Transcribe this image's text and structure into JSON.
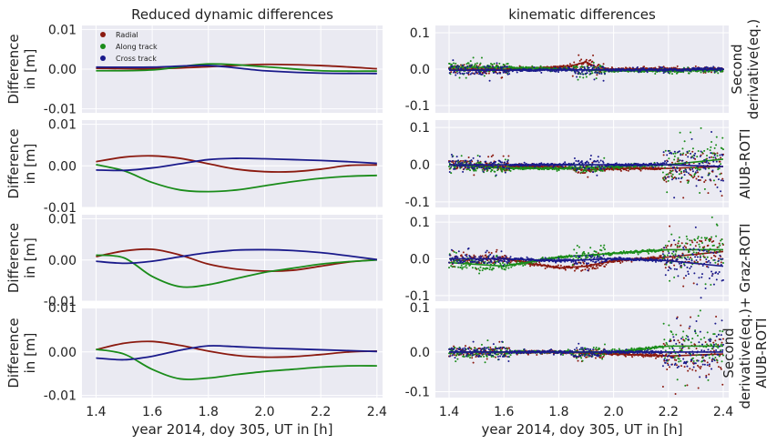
{
  "figure": {
    "col_titles": [
      "Reduced dynamic differences",
      "kinematic differences"
    ],
    "xlabel": "year 2014, doy 305, UT in [h]",
    "ylabel_line1": "Difference",
    "ylabel_line2": "in [m]",
    "row_labels": [
      [
        "Second",
        "derivative(eq.)"
      ],
      [
        "AIUB-ROTI"
      ],
      [
        "Graz-ROTI"
      ],
      [
        "Second",
        "derivative(eq.)+",
        "AIUB-ROTI"
      ]
    ],
    "legend": [
      "Radial",
      "Along track",
      "Cross track"
    ]
  },
  "colors": {
    "radial": "#8b1a10",
    "along": "#1a8c1a",
    "cross": "#1a1a8b",
    "panel_bg": "#eaeaf2",
    "grid": "#ffffff"
  },
  "chart_data": [
    {
      "type": "line",
      "panel": "reduced-row1",
      "xlim": [
        1.35,
        2.42
      ],
      "ylim": [
        -0.011,
        0.011
      ],
      "yticks": [
        -0.01,
        0.0,
        0.01
      ],
      "ytick_labels": [
        "-0.01",
        "0.00",
        "0.01"
      ],
      "xticks": [
        1.4,
        1.6,
        1.8,
        2.0,
        2.2,
        2.4
      ],
      "series": [
        {
          "name": "Radial",
          "x": [
            1.4,
            1.6,
            1.8,
            2.0,
            2.2,
            2.4
          ],
          "y": [
            0.0002,
            0.0001,
            0.0006,
            0.0012,
            0.0009,
            0.0001
          ]
        },
        {
          "name": "Along track",
          "x": [
            1.4,
            1.6,
            1.8,
            2.0,
            2.2,
            2.4
          ],
          "y": [
            -0.0004,
            -0.0002,
            0.0013,
            0.0006,
            -0.0004,
            -0.0005
          ]
        },
        {
          "name": "Cross track",
          "x": [
            1.4,
            1.6,
            1.8,
            2.0,
            2.2,
            2.4
          ],
          "y": [
            0.0005,
            0.0005,
            0.0009,
            -0.0004,
            -0.001,
            -0.0011
          ]
        }
      ]
    },
    {
      "type": "line",
      "panel": "reduced-row2",
      "xlim": [
        1.35,
        2.42
      ],
      "ylim": [
        -0.01,
        0.011
      ],
      "yticks": [
        -0.01,
        0.0,
        0.01
      ],
      "ytick_labels": [
        "-0.01",
        "0.00",
        "0.01"
      ],
      "xticks": [
        1.4,
        1.6,
        1.8,
        2.0,
        2.2,
        2.4
      ],
      "series": [
        {
          "name": "Radial",
          "x": [
            1.4,
            1.5,
            1.6,
            1.7,
            1.8,
            1.9,
            2.0,
            2.1,
            2.2,
            2.3,
            2.4
          ],
          "y": [
            0.001,
            0.0021,
            0.0024,
            0.0018,
            0.0005,
            -0.0008,
            -0.0014,
            -0.0014,
            -0.0008,
            0.0001,
            0.0002
          ]
        },
        {
          "name": "Along track",
          "x": [
            1.4,
            1.5,
            1.6,
            1.7,
            1.8,
            1.9,
            2.0,
            2.1,
            2.2,
            2.3,
            2.4
          ],
          "y": [
            0.0003,
            -0.0012,
            -0.004,
            -0.0058,
            -0.0062,
            -0.0058,
            -0.0048,
            -0.0038,
            -0.003,
            -0.0025,
            -0.0023
          ]
        },
        {
          "name": "Cross track",
          "x": [
            1.4,
            1.5,
            1.6,
            1.7,
            1.8,
            1.9,
            2.0,
            2.1,
            2.2,
            2.3,
            2.4
          ],
          "y": [
            -0.001,
            -0.0011,
            -0.0005,
            0.0005,
            0.0015,
            0.0018,
            0.0017,
            0.0015,
            0.0013,
            0.001,
            0.0006
          ]
        }
      ]
    },
    {
      "type": "line",
      "panel": "reduced-row3",
      "xlim": [
        1.35,
        2.42
      ],
      "ylim": [
        -0.01,
        0.011
      ],
      "yticks": [
        -0.01,
        0.0,
        0.01
      ],
      "ytick_labels": [
        "-0.01",
        "0.00",
        "0.01"
      ],
      "xticks": [
        1.4,
        1.6,
        1.8,
        2.0,
        2.2,
        2.4
      ],
      "series": [
        {
          "name": "Radial",
          "x": [
            1.4,
            1.5,
            1.6,
            1.7,
            1.8,
            1.9,
            2.0,
            2.1,
            2.2,
            2.3,
            2.4
          ],
          "y": [
            0.0008,
            0.0022,
            0.0026,
            0.0012,
            -0.001,
            -0.0022,
            -0.0027,
            -0.0025,
            -0.0015,
            -0.0005,
            0.0001
          ]
        },
        {
          "name": "Along track",
          "x": [
            1.4,
            1.5,
            1.6,
            1.7,
            1.8,
            1.9,
            2.0,
            2.1,
            2.2,
            2.3,
            2.4
          ],
          "y": [
            0.0012,
            0.0005,
            -0.004,
            -0.0065,
            -0.006,
            -0.0045,
            -0.003,
            -0.002,
            -0.001,
            -0.0004,
            0.0
          ]
        },
        {
          "name": "Cross track",
          "x": [
            1.4,
            1.5,
            1.6,
            1.7,
            1.8,
            1.9,
            2.0,
            2.1,
            2.2,
            2.3,
            2.4
          ],
          "y": [
            -0.0003,
            -0.0008,
            -0.0003,
            0.0008,
            0.0018,
            0.0024,
            0.0025,
            0.0023,
            0.0018,
            0.001,
            0.0001
          ]
        }
      ]
    },
    {
      "type": "line",
      "panel": "reduced-row4",
      "xlim": [
        1.35,
        2.42
      ],
      "ylim": [
        -0.0105,
        0.01
      ],
      "yticks": [
        -0.01,
        0.0
      ],
      "ytick_labels": [
        "-0.01",
        "0.00"
      ],
      "xticks": [
        1.4,
        1.6,
        1.8,
        2.0,
        2.2,
        2.4
      ],
      "xtick_labels": [
        "1.4",
        "1.6",
        "1.8",
        "2.0",
        "2.2",
        "2.4"
      ],
      "top_label": "0.01",
      "series": [
        {
          "name": "Radial",
          "x": [
            1.4,
            1.5,
            1.6,
            1.7,
            1.8,
            1.9,
            2.0,
            2.1,
            2.2,
            2.3,
            2.4
          ],
          "y": [
            0.0005,
            0.002,
            0.0024,
            0.0015,
            0.0002,
            -0.0008,
            -0.0012,
            -0.0011,
            -0.0006,
            0.0,
            0.0002
          ]
        },
        {
          "name": "Along track",
          "x": [
            1.4,
            1.5,
            1.6,
            1.7,
            1.8,
            1.9,
            2.0,
            2.1,
            2.2,
            2.3,
            2.4
          ],
          "y": [
            0.0006,
            -0.0005,
            -0.004,
            -0.0062,
            -0.006,
            -0.0052,
            -0.0045,
            -0.004,
            -0.0035,
            -0.0032,
            -0.0032
          ]
        },
        {
          "name": "Cross track",
          "x": [
            1.4,
            1.5,
            1.6,
            1.7,
            1.8,
            1.9,
            2.0,
            2.1,
            2.2,
            2.3,
            2.4
          ],
          "y": [
            -0.0014,
            -0.0018,
            -0.001,
            0.0004,
            0.0014,
            0.0012,
            0.0009,
            0.0007,
            0.0005,
            0.0003,
            0.0001
          ]
        }
      ]
    },
    {
      "type": "scatter",
      "panel": "kinematic-row1",
      "xlim": [
        1.35,
        2.42
      ],
      "ylim": [
        -0.12,
        0.12
      ],
      "yticks": [
        -0.1,
        0.0,
        0.1
      ],
      "ytick_labels": [
        "-0.1",
        "0.0",
        "0.1"
      ],
      "xticks": [
        1.4,
        1.6,
        1.8,
        2.0,
        2.2,
        2.4
      ],
      "series": [
        {
          "name": "Radial",
          "x": [
            1.4,
            1.6,
            1.8,
            1.85,
            1.9,
            1.95,
            2.0,
            2.2,
            2.4
          ],
          "y": [
            0.0,
            0.0,
            0.005,
            0.01,
            0.02,
            0.0,
            0.0,
            0.0,
            0.0
          ]
        },
        {
          "name": "Along track",
          "x": [
            1.4,
            1.6,
            1.8,
            2.0,
            2.2,
            2.4
          ],
          "y": [
            0.005,
            0.005,
            0.0,
            -0.005,
            -0.005,
            -0.003
          ]
        },
        {
          "name": "Cross track",
          "x": [
            1.4,
            1.6,
            1.8,
            2.0,
            2.2,
            2.4
          ],
          "y": [
            -0.003,
            -0.003,
            -0.002,
            -0.002,
            -0.002,
            0.0
          ]
        }
      ]
    },
    {
      "type": "scatter",
      "panel": "kinematic-row2",
      "xlim": [
        1.35,
        2.42
      ],
      "ylim": [
        -0.115,
        0.12
      ],
      "yticks": [
        -0.1,
        0.0,
        0.1
      ],
      "ytick_labels": [
        "-0.1",
        "0.0",
        "0.1"
      ],
      "xticks": [
        1.4,
        1.6,
        1.8,
        2.0,
        2.2,
        2.4
      ],
      "series": [
        {
          "name": "Radial",
          "x": [
            1.4,
            1.6,
            1.8,
            1.9,
            2.0,
            2.2,
            2.4
          ],
          "y": [
            0.0,
            -0.005,
            -0.005,
            -0.015,
            -0.01,
            -0.01,
            -0.005
          ]
        },
        {
          "name": "Along track",
          "x": [
            1.4,
            1.6,
            1.8,
            2.0,
            2.2,
            2.4
          ],
          "y": [
            0.0,
            -0.01,
            -0.01,
            -0.005,
            0.0,
            0.015
          ]
        },
        {
          "name": "Cross track",
          "x": [
            1.4,
            1.6,
            1.8,
            2.0,
            2.2,
            2.4
          ],
          "y": [
            0.0,
            0.0,
            0.0,
            0.0,
            0.0,
            -0.005
          ]
        }
      ]
    },
    {
      "type": "scatter",
      "panel": "kinematic-row3",
      "xlim": [
        1.35,
        2.42
      ],
      "ylim": [
        -0.115,
        0.12
      ],
      "yticks": [
        -0.1,
        0.0,
        0.1
      ],
      "ytick_labels": [
        "-0.1",
        "0.0",
        "0.1"
      ],
      "xticks": [
        1.4,
        1.6,
        1.8,
        2.0,
        2.2,
        2.4
      ],
      "series": [
        {
          "name": "Radial",
          "x": [
            1.4,
            1.6,
            1.8,
            1.9,
            2.0,
            2.2,
            2.4
          ],
          "y": [
            0.0,
            0.0,
            -0.025,
            -0.02,
            -0.005,
            0.005,
            0.02
          ]
        },
        {
          "name": "Along track",
          "x": [
            1.4,
            1.6,
            1.8,
            2.0,
            2.2,
            2.4
          ],
          "y": [
            -0.01,
            -0.02,
            0.005,
            0.015,
            0.025,
            0.025
          ]
        },
        {
          "name": "Cross track",
          "x": [
            1.4,
            1.6,
            1.8,
            2.0,
            2.2,
            2.4
          ],
          "y": [
            0.0,
            0.0,
            -0.005,
            0.0,
            -0.005,
            -0.02
          ]
        }
      ]
    },
    {
      "type": "scatter",
      "panel": "kinematic-row4",
      "xlim": [
        1.35,
        2.42
      ],
      "ylim": [
        -0.115,
        0.11
      ],
      "yticks": [
        -0.1,
        0.0
      ],
      "ytick_labels": [
        "-0.1",
        "0.0"
      ],
      "xticks": [
        1.4,
        1.6,
        1.8,
        2.0,
        2.2,
        2.4
      ],
      "xtick_labels": [
        "1.4",
        "1.6",
        "1.8",
        "2.0",
        "2.2",
        "2.4"
      ],
      "top_label": "0.1",
      "series": [
        {
          "name": "Radial",
          "x": [
            1.4,
            1.6,
            1.8,
            2.0,
            2.2,
            2.4
          ],
          "y": [
            0.0,
            0.0,
            0.0,
            -0.005,
            -0.01,
            -0.005
          ]
        },
        {
          "name": "Along track",
          "x": [
            1.4,
            1.6,
            1.8,
            2.0,
            2.2,
            2.4
          ],
          "y": [
            0.0,
            0.0,
            0.0,
            0.0,
            0.015,
            0.015
          ]
        },
        {
          "name": "Cross track",
          "x": [
            1.4,
            1.6,
            1.8,
            2.0,
            2.2,
            2.4
          ],
          "y": [
            0.0,
            0.0,
            0.0,
            0.0,
            0.0,
            0.0
          ]
        }
      ]
    }
  ]
}
